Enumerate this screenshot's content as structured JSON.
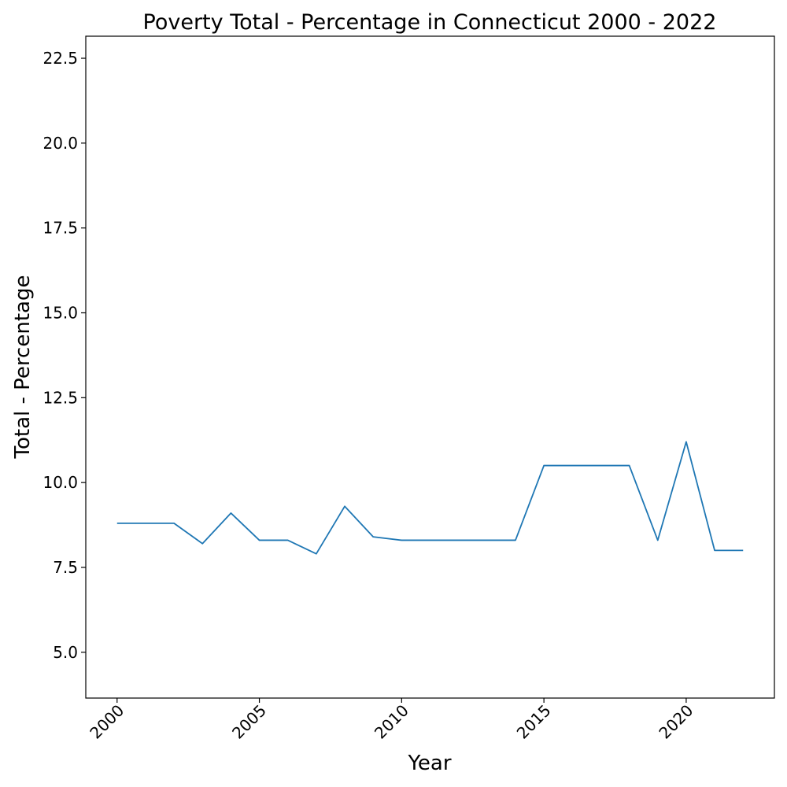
{
  "chart_data": {
    "type": "line",
    "title": "Poverty Total - Percentage in Connecticut 2000 - 2022",
    "xlabel": "Year",
    "ylabel": "Total - Percentage",
    "x": [
      2000,
      2001,
      2002,
      2003,
      2004,
      2005,
      2006,
      2007,
      2008,
      2009,
      2010,
      2011,
      2012,
      2013,
      2014,
      2015,
      2016,
      2017,
      2018,
      2019,
      2020,
      2021,
      2022
    ],
    "series": [
      {
        "values": [
          8.8,
          8.8,
          8.8,
          8.2,
          9.1,
          8.3,
          8.3,
          7.9,
          9.3,
          8.4,
          8.3,
          8.3,
          8.3,
          8.3,
          8.3,
          10.5,
          10.5,
          10.5,
          10.5,
          8.3,
          11.2,
          8.0,
          8.0
        ],
        "color": "#1f77b4"
      }
    ],
    "xlim": [
      1998.9,
      2023.1
    ],
    "ylim": [
      3.65,
      23.15
    ],
    "xticks": [
      2000,
      2005,
      2010,
      2015,
      2020
    ],
    "xtick_labels": [
      "2000",
      "2005",
      "2010",
      "2015",
      "2020"
    ],
    "yticks": [
      5.0,
      7.5,
      10.0,
      12.5,
      15.0,
      17.5,
      20.0,
      22.5
    ],
    "ytick_labels": [
      "5.0",
      "7.5",
      "10.0",
      "12.5",
      "15.0",
      "17.5",
      "20.0",
      "22.5"
    ],
    "grid": false,
    "legend": "none"
  }
}
